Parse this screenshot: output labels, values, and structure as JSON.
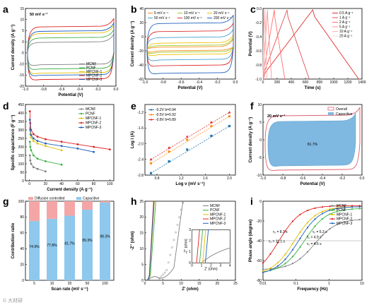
{
  "watermark": "© 大材研",
  "chart_data": [
    {
      "panel": "a",
      "type": "line",
      "annotation": "50 mV s⁻¹",
      "xlabel": "Potential (V)",
      "ylabel": "Current density (A g⁻¹)",
      "xlim": [
        -1.0,
        0.0
      ],
      "ylim": [
        -20,
        15
      ],
      "xticks": [
        "-1.0",
        "-0.8",
        "-0.6",
        "-0.4",
        "-0.2",
        "0.0"
      ],
      "yticks": [
        "-20",
        "-15",
        "-10",
        "-5",
        "0",
        "5",
        "10",
        "15"
      ],
      "series": [
        {
          "name": "MCNF",
          "color": "#808080",
          "amp": 5
        },
        {
          "name": "PCNF",
          "color": "#3cb043",
          "amp": 7
        },
        {
          "name": "MPCNF-1",
          "color": "#e0c000",
          "amp": 9
        },
        {
          "name": "MPCNF-2",
          "color": "#e02020",
          "amp": 12
        },
        {
          "name": "MPCNF-3",
          "color": "#1f5fbf",
          "amp": 10
        }
      ]
    },
    {
      "panel": "b",
      "type": "line",
      "xlabel": "Potential (V)",
      "ylabel": "Current density (A g⁻¹)",
      "xlim": [
        -1.0,
        0.0
      ],
      "ylim": [
        -80,
        60
      ],
      "xticks": [
        "-1.0",
        "-0.8",
        "-0.6",
        "-0.4",
        "-0.2",
        "0.0"
      ],
      "yticks": [
        "-60",
        "-40",
        "-20",
        "0",
        "20",
        "40"
      ],
      "series": [
        {
          "name": "5 mV s⁻¹",
          "color": "#ff8c1a",
          "amp": 3
        },
        {
          "name": "10 mV s⁻¹",
          "color": "#9acd32",
          "amp": 6
        },
        {
          "name": "20 mV s⁻¹",
          "color": "#f0c000",
          "amp": 11
        },
        {
          "name": "50 mV s⁻¹",
          "color": "#40a0d0",
          "amp": 22
        },
        {
          "name": "100 mV s⁻¹",
          "color": "#e03030",
          "amp": 34
        },
        {
          "name": "200 mV s⁻¹",
          "color": "#1f5fbf",
          "amp": 50
        }
      ]
    },
    {
      "panel": "c",
      "type": "line",
      "xlabel": "Time (s)",
      "ylabel": "Potential (V)",
      "xlim": [
        0,
        1500
      ],
      "ylim": [
        -1.0,
        0.0
      ],
      "xticks": [
        "0",
        "200",
        "400",
        "600",
        "800",
        "1000",
        "1200",
        "1400"
      ],
      "yticks": [
        "-1.0",
        "-0.8",
        "-0.6",
        "-0.4",
        "-0.2",
        "0.0"
      ],
      "series": [
        {
          "name": "0.5 A g⁻¹",
          "color": "#e03030",
          "tmax": 1450
        },
        {
          "name": "1 A g⁻¹",
          "color": "#e05050",
          "tmax": 700
        },
        {
          "name": "2 A g⁻¹",
          "color": "#ff7070",
          "tmax": 330
        },
        {
          "name": "5 A g⁻¹",
          "color": "#ff9090",
          "tmax": 130
        },
        {
          "name": "10 A g⁻¹",
          "color": "#ffb0b0",
          "tmax": 60
        },
        {
          "name": "20 A g⁻¹",
          "color": "#ffd0d0",
          "tmax": 25
        }
      ]
    },
    {
      "panel": "d",
      "type": "line",
      "xlabel": "Current density (A g⁻¹)",
      "ylabel": "Specific capacitance (F g⁻¹)",
      "xlim": [
        -5,
        105
      ],
      "ylim": [
        0,
        450
      ],
      "xticks": [
        "0",
        "20",
        "40",
        "60",
        "80",
        "100"
      ],
      "yticks": [
        "0",
        "50",
        "100",
        "150",
        "200",
        "250",
        "300",
        "350",
        "400",
        "450"
      ],
      "x": [
        0.5,
        1,
        2,
        5,
        10,
        20,
        40,
        60,
        80,
        100
      ],
      "series": [
        {
          "name": "MCNF",
          "color": "#808080",
          "values": [
            150,
            120,
            100,
            80,
            70,
            55,
            null,
            null,
            null,
            null
          ]
        },
        {
          "name": "PCNF",
          "color": "#3cb043",
          "values": [
            230,
            200,
            180,
            150,
            130,
            115,
            95,
            null,
            null,
            null
          ]
        },
        {
          "name": "MPCNF-1",
          "color": "#e0c000",
          "values": [
            310,
            275,
            255,
            235,
            220,
            205,
            180,
            null,
            null,
            null
          ]
        },
        {
          "name": "MPCNF-2",
          "color": "#e02020",
          "values": [
            410,
            340,
            300,
            275,
            260,
            245,
            230,
            215,
            200,
            185
          ]
        },
        {
          "name": "MPCNF-3",
          "color": "#1f5fbf",
          "values": [
            360,
            300,
            270,
            250,
            235,
            220,
            205,
            190,
            170,
            null
          ]
        }
      ]
    },
    {
      "panel": "e",
      "type": "scatter",
      "xlabel": "Log v (mV s⁻¹)",
      "ylabel": "Log i (A)",
      "xlim": [
        0.6,
        2.1
      ],
      "ylim": [
        -2.8,
        -1.0
      ],
      "xticks": [
        "0.8",
        "1.2",
        "1.6",
        "2.0"
      ],
      "yticks": [
        "-2.8",
        "-2.4",
        "-2.0",
        "-1.6",
        "-1.2"
      ],
      "x": [
        0.7,
        1.0,
        1.3,
        1.7,
        2.0
      ],
      "series": [
        {
          "name": "-0.2V  b=0.94",
          "color": "#1f77b4",
          "values": [
            -2.75,
            -2.45,
            -2.15,
            -1.8,
            -1.55
          ]
        },
        {
          "name": "-0.5V  b=0.92",
          "color": "#ff8c1a",
          "values": [
            -2.5,
            -2.2,
            -1.9,
            -1.55,
            -1.3
          ]
        },
        {
          "name": "-0.8V  b=0.89",
          "color": "#e03030",
          "values": [
            -2.4,
            -2.1,
            -1.82,
            -1.45,
            -1.2
          ]
        }
      ]
    },
    {
      "panel": "f",
      "type": "area",
      "annotation": "20 mV s⁻¹",
      "xlabel": "Potential (V)",
      "ylabel": "Current density (A g⁻¹)",
      "xlim": [
        -1.0,
        0.0
      ],
      "ylim": [
        -10,
        10
      ],
      "xticks": [
        "-1.0",
        "-0.8",
        "-0.6",
        "-0.4",
        "-0.2",
        "0.0"
      ],
      "yticks": [
        "-10",
        "-5",
        "0",
        "5",
        "10"
      ],
      "capacitive_percent": "81.7%",
      "series": [
        {
          "name": "Overall",
          "color": "#e06070",
          "type": "line"
        },
        {
          "name": "Capacitive",
          "color": "#7fb8e0",
          "type": "area"
        }
      ]
    },
    {
      "panel": "g",
      "type": "bar",
      "xlabel": "Scan rate (mV s⁻¹)",
      "ylabel": "Contribution ratio",
      "ylim": [
        0,
        100
      ],
      "categories": [
        "5",
        "10",
        "20",
        "50",
        "100"
      ],
      "yticks": [
        "0",
        "20",
        "40",
        "60",
        "80",
        "100"
      ],
      "series": [
        {
          "name": "Capacitive",
          "color": "#8ec8ec",
          "values": [
            74.9,
            77.8,
            81.7,
            89.3,
            98.3
          ]
        },
        {
          "name": "Diffusion controlled",
          "color": "#f4a6a6",
          "values": [
            25.1,
            22.2,
            18.3,
            10.7,
            1.7
          ]
        }
      ],
      "labels": [
        "74.9%",
        "77.8%",
        "81.7%",
        "89.3%",
        "98.3%"
      ]
    },
    {
      "panel": "h",
      "type": "line",
      "xlabel": "Z' (ohm)",
      "ylabel": "-Z'' (ohm)",
      "xlim": [
        0,
        25
      ],
      "ylim": [
        0,
        25
      ],
      "xticks": [
        "0",
        "5",
        "10",
        "15",
        "20",
        "25"
      ],
      "yticks": [
        "0",
        "5",
        "10",
        "15",
        "20",
        "25"
      ],
      "inset": {
        "xlabel": "Z' (ohm)",
        "ylabel": "-Z'' (ohm)",
        "xticks": [
          "0",
          "1",
          "2",
          "3",
          "4"
        ],
        "yticks": [
          "0",
          "1",
          "2",
          "3"
        ]
      },
      "series": [
        {
          "name": "MCNF",
          "color": "#808080"
        },
        {
          "name": "PCNF",
          "color": "#3cb043"
        },
        {
          "name": "MPCNF-1",
          "color": "#e0c000"
        },
        {
          "name": "MPCNF-2",
          "color": "#e02020"
        },
        {
          "name": "MPCNF-3",
          "color": "#1f5fbf"
        }
      ]
    },
    {
      "panel": "i",
      "type": "line",
      "xlabel": "Frequency (Hz)",
      "ylabel": "Phase angle (degree)",
      "xlim": [
        0.01,
        10
      ],
      "ylim": [
        -90,
        0
      ],
      "xticks": [
        "0.01",
        "0.1",
        "1",
        "10"
      ],
      "yticks": [
        "-80",
        "-60",
        "-40",
        "-20",
        "0"
      ],
      "series": [
        {
          "name": "MCNF",
          "color": "#808080",
          "tau": "τ₀ = 11.1 s"
        },
        {
          "name": "PCNF",
          "color": "#3cb043",
          "tau": "τ₀ = 8.1 s"
        },
        {
          "name": "MPCNF-1",
          "color": "#e0c000",
          "tau": "τ₀ = 4.9 s"
        },
        {
          "name": "MPCNF-2",
          "color": "#e02020",
          "tau": "τ₀ = 4.5 s"
        },
        {
          "name": "MPCNF-3",
          "color": "#1f5fbf",
          "tau": "τ₀ = 5.3 s"
        }
      ]
    }
  ]
}
